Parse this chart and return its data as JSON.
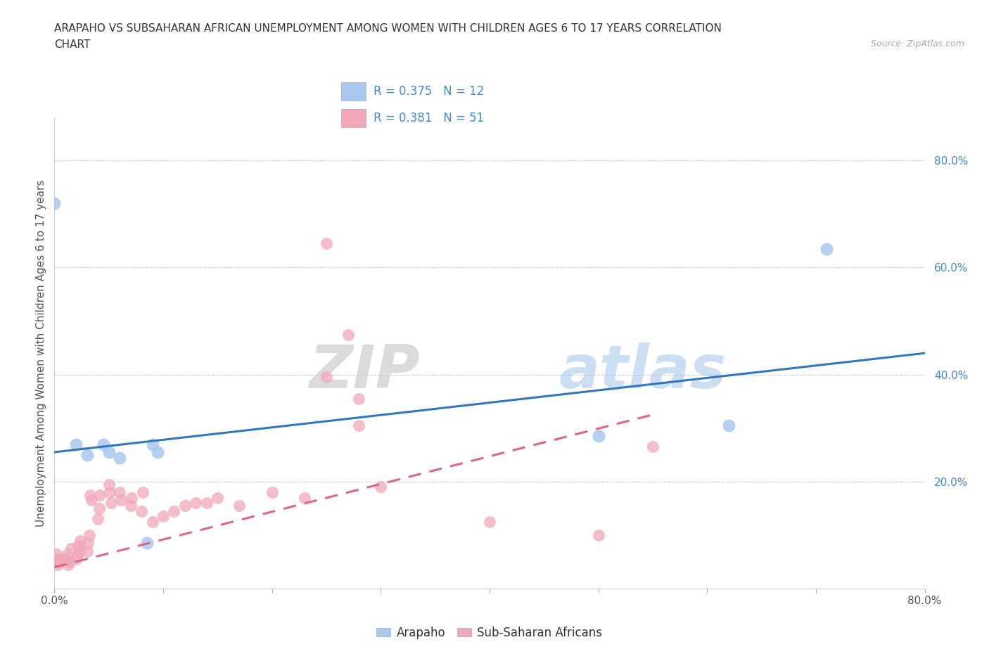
{
  "title_line1": "ARAPAHO VS SUBSAHARAN AFRICAN UNEMPLOYMENT AMONG WOMEN WITH CHILDREN AGES 6 TO 17 YEARS CORRELATION",
  "title_line2": "CHART",
  "source_text": "Source: ZipAtlas.com",
  "ylabel": "Unemployment Among Women with Children Ages 6 to 17 years",
  "xlim": [
    0,
    0.8
  ],
  "ylim": [
    0,
    0.88
  ],
  "xtick_positions": [
    0.0,
    0.1,
    0.2,
    0.3,
    0.4,
    0.5,
    0.6,
    0.7,
    0.8
  ],
  "ytick_positions": [
    0.0,
    0.2,
    0.4,
    0.6,
    0.8
  ],
  "yticklabels": [
    "",
    "20.0%",
    "40.0%",
    "60.0%",
    "80.0%"
  ],
  "grid_color": "#d0d0d0",
  "background_color": "#ffffff",
  "arapaho_color": "#a8c8f0",
  "subsaharan_color": "#f0a8b8",
  "trendline1_color": "#3377bb",
  "trendline2_color": "#dd6688",
  "legend_r1": "R = 0.375",
  "legend_n1": "N = 12",
  "legend_r2": "R = 0.381",
  "legend_n2": "N = 51",
  "legend_text_color": "#4488cc",
  "arapaho_label": "Arapaho",
  "subsaharan_label": "Sub-Saharan Africans",
  "arapaho_points": [
    [
      0.0,
      0.72
    ],
    [
      0.02,
      0.27
    ],
    [
      0.03,
      0.25
    ],
    [
      0.045,
      0.27
    ],
    [
      0.05,
      0.255
    ],
    [
      0.06,
      0.245
    ],
    [
      0.085,
      0.085
    ],
    [
      0.09,
      0.27
    ],
    [
      0.095,
      0.255
    ],
    [
      0.5,
      0.285
    ],
    [
      0.62,
      0.305
    ],
    [
      0.71,
      0.635
    ]
  ],
  "subsaharan_points": [
    [
      0.001,
      0.055
    ],
    [
      0.002,
      0.065
    ],
    [
      0.003,
      0.045
    ],
    [
      0.004,
      0.05
    ],
    [
      0.005,
      0.055
    ],
    [
      0.01,
      0.055
    ],
    [
      0.012,
      0.065
    ],
    [
      0.013,
      0.045
    ],
    [
      0.014,
      0.05
    ],
    [
      0.015,
      0.075
    ],
    [
      0.02,
      0.055
    ],
    [
      0.021,
      0.06
    ],
    [
      0.022,
      0.08
    ],
    [
      0.023,
      0.07
    ],
    [
      0.024,
      0.09
    ],
    [
      0.03,
      0.07
    ],
    [
      0.031,
      0.085
    ],
    [
      0.032,
      0.1
    ],
    [
      0.033,
      0.175
    ],
    [
      0.034,
      0.165
    ],
    [
      0.04,
      0.13
    ],
    [
      0.041,
      0.15
    ],
    [
      0.042,
      0.175
    ],
    [
      0.05,
      0.195
    ],
    [
      0.051,
      0.18
    ],
    [
      0.052,
      0.16
    ],
    [
      0.06,
      0.18
    ],
    [
      0.061,
      0.165
    ],
    [
      0.07,
      0.155
    ],
    [
      0.071,
      0.17
    ],
    [
      0.08,
      0.145
    ],
    [
      0.081,
      0.18
    ],
    [
      0.09,
      0.125
    ],
    [
      0.1,
      0.135
    ],
    [
      0.11,
      0.145
    ],
    [
      0.12,
      0.155
    ],
    [
      0.13,
      0.16
    ],
    [
      0.14,
      0.16
    ],
    [
      0.15,
      0.17
    ],
    [
      0.17,
      0.155
    ],
    [
      0.2,
      0.18
    ],
    [
      0.23,
      0.17
    ],
    [
      0.25,
      0.645
    ],
    [
      0.27,
      0.475
    ],
    [
      0.28,
      0.355
    ],
    [
      0.3,
      0.19
    ],
    [
      0.4,
      0.125
    ],
    [
      0.5,
      0.1
    ],
    [
      0.55,
      0.265
    ],
    [
      0.25,
      0.395
    ],
    [
      0.28,
      0.305
    ]
  ],
  "trendline1_x": [
    0.0,
    0.8
  ],
  "trendline1_y": [
    0.255,
    0.44
  ],
  "trendline2_x": [
    0.0,
    0.55
  ],
  "trendline2_y": [
    0.04,
    0.325
  ]
}
